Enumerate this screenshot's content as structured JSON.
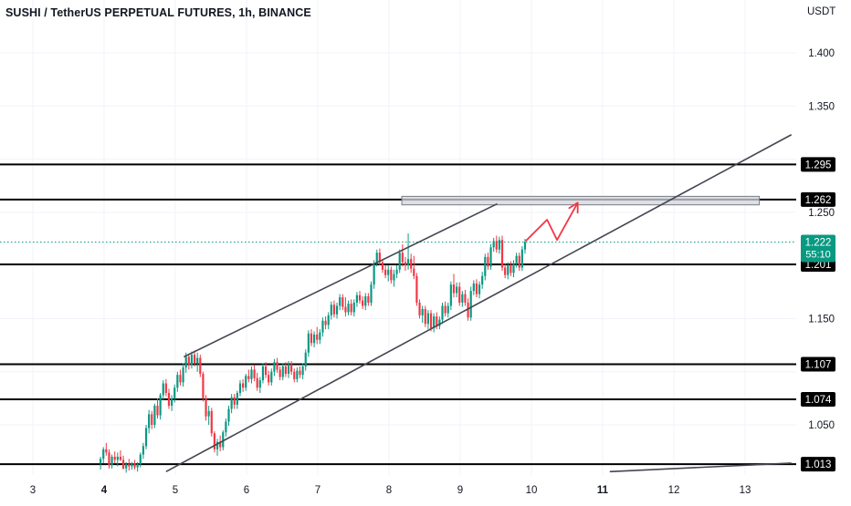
{
  "header": {
    "title": "SUSHI / TetherUS PERPETUAL FUTURES, 1h, BINANCE",
    "currency": "USDT"
  },
  "chart_data": {
    "type": "candlestick",
    "title": "SUSHI / TetherUS PERPETUAL FUTURES, 1h, BINANCE",
    "ylabel": "USDT",
    "xlim": [
      2.7,
      13.6
    ],
    "ylim": [
      1.002,
      1.437
    ],
    "y_ticks": [
      "1.400",
      "1.350",
      "1.250",
      "1.150",
      "1.050"
    ],
    "x_ticks": [
      {
        "x": 3,
        "label": "3",
        "bold": false
      },
      {
        "x": 4,
        "label": "4",
        "bold": true
      },
      {
        "x": 5,
        "label": "5",
        "bold": false
      },
      {
        "x": 6,
        "label": "6",
        "bold": false
      },
      {
        "x": 7,
        "label": "7",
        "bold": false
      },
      {
        "x": 8,
        "label": "8",
        "bold": false
      },
      {
        "x": 9,
        "label": "9",
        "bold": false
      },
      {
        "x": 10,
        "label": "10",
        "bold": false
      },
      {
        "x": 11,
        "label": "11",
        "bold": true
      },
      {
        "x": 12,
        "label": "12",
        "bold": false
      },
      {
        "x": 13,
        "label": "13",
        "bold": false
      }
    ],
    "horizontal_levels": [
      {
        "value": 1.295,
        "label": "1.295"
      },
      {
        "value": 1.262,
        "label": "1.262"
      },
      {
        "value": 1.201,
        "label": "1.201"
      },
      {
        "value": 1.107,
        "label": "1.107"
      },
      {
        "value": 1.074,
        "label": "1.074"
      },
      {
        "value": 1.013,
        "label": "1.013"
      }
    ],
    "current_price": {
      "value": 1.222,
      "label": "1.222",
      "countdown": "55:10",
      "color": "#089981"
    },
    "resistance_zone": {
      "x_start": 8.18,
      "x_end": 13.2,
      "y_low": 1.257,
      "y_high": 1.265,
      "color": "#b2b5be"
    },
    "trendlines": [
      {
        "name": "channel-upper",
        "x1": 5.12,
        "y1": 1.114,
        "x2": 9.52,
        "y2": 1.258
      },
      {
        "name": "channel-lower",
        "x1": 4.87,
        "y1": 1.006,
        "x2": 13.65,
        "y2": 1.323
      },
      {
        "name": "bottom-right-line",
        "x1": 11.1,
        "y1": 1.006,
        "x2": 13.65,
        "y2": 1.014
      }
    ],
    "projection_path": {
      "color": "#f23645",
      "points": [
        [
          9.92,
          1.223
        ],
        [
          10.22,
          1.243
        ],
        [
          10.36,
          1.224
        ],
        [
          10.65,
          1.259
        ]
      ]
    },
    "colors": {
      "up": "#089981",
      "down": "#f23645",
      "level": "#000000",
      "trend": "#434651"
    },
    "candles": [
      [
        3.95,
        1.014,
        1.02,
        1.008,
        1.018
      ],
      [
        3.99,
        1.018,
        1.029,
        1.014,
        1.027
      ],
      [
        4.03,
        1.027,
        1.033,
        1.021,
        1.024
      ],
      [
        4.07,
        1.024,
        1.027,
        1.009,
        1.012
      ],
      [
        4.11,
        1.012,
        1.022,
        1.009,
        1.02
      ],
      [
        4.15,
        1.02,
        1.025,
        1.014,
        1.017
      ],
      [
        4.19,
        1.017,
        1.024,
        1.011,
        1.02
      ],
      [
        4.23,
        1.02,
        1.026,
        1.016,
        1.017
      ],
      [
        4.27,
        1.017,
        1.021,
        1.008,
        1.009
      ],
      [
        4.31,
        1.009,
        1.015,
        1.005,
        1.013
      ],
      [
        4.35,
        1.013,
        1.018,
        1.007,
        1.011
      ],
      [
        4.39,
        1.011,
        1.015,
        1.008,
        1.014
      ],
      [
        4.43,
        1.014,
        1.017,
        1.008,
        1.01
      ],
      [
        4.47,
        1.01,
        1.015,
        1.006,
        1.013
      ],
      [
        4.51,
        1.013,
        1.024,
        1.01,
        1.022
      ],
      [
        4.55,
        1.022,
        1.033,
        1.018,
        1.03
      ],
      [
        4.59,
        1.03,
        1.05,
        1.027,
        1.047
      ],
      [
        4.63,
        1.047,
        1.064,
        1.042,
        1.06
      ],
      [
        4.67,
        1.06,
        1.063,
        1.046,
        1.05
      ],
      [
        4.71,
        1.05,
        1.07,
        1.047,
        1.068
      ],
      [
        4.75,
        1.068,
        1.075,
        1.056,
        1.059
      ],
      [
        4.79,
        1.059,
        1.08,
        1.055,
        1.078
      ],
      [
        4.83,
        1.078,
        1.092,
        1.073,
        1.089
      ],
      [
        4.87,
        1.089,
        1.093,
        1.077,
        1.08
      ],
      [
        4.91,
        1.08,
        1.084,
        1.065,
        1.068
      ],
      [
        4.95,
        1.068,
        1.078,
        1.063,
        1.075
      ],
      [
        4.99,
        1.075,
        1.088,
        1.071,
        1.085
      ],
      [
        5.03,
        1.085,
        1.1,
        1.081,
        1.097
      ],
      [
        5.07,
        1.097,
        1.102,
        1.087,
        1.09
      ],
      [
        5.11,
        1.09,
        1.108,
        1.086,
        1.104
      ],
      [
        5.15,
        1.104,
        1.118,
        1.099,
        1.114
      ],
      [
        5.19,
        1.114,
        1.117,
        1.102,
        1.106
      ],
      [
        5.23,
        1.106,
        1.119,
        1.103,
        1.116
      ],
      [
        5.27,
        1.116,
        1.12,
        1.105,
        1.108
      ],
      [
        5.31,
        1.108,
        1.118,
        1.1,
        1.113
      ],
      [
        5.35,
        1.113,
        1.116,
        1.095,
        1.098
      ],
      [
        5.39,
        1.098,
        1.1,
        1.072,
        1.075
      ],
      [
        5.43,
        1.075,
        1.078,
        1.054,
        1.058
      ],
      [
        5.47,
        1.058,
        1.068,
        1.05,
        1.063
      ],
      [
        5.51,
        1.063,
        1.066,
        1.039,
        1.042
      ],
      [
        5.55,
        1.042,
        1.044,
        1.024,
        1.027
      ],
      [
        5.59,
        1.027,
        1.037,
        1.021,
        1.034
      ],
      [
        5.63,
        1.034,
        1.04,
        1.025,
        1.029
      ],
      [
        5.67,
        1.029,
        1.045,
        1.026,
        1.043
      ],
      [
        5.71,
        1.043,
        1.056,
        1.039,
        1.053
      ],
      [
        5.75,
        1.053,
        1.068,
        1.049,
        1.065
      ],
      [
        5.79,
        1.065,
        1.079,
        1.061,
        1.076
      ],
      [
        5.83,
        1.076,
        1.079,
        1.065,
        1.069
      ],
      [
        5.87,
        1.069,
        1.082,
        1.065,
        1.08
      ],
      [
        5.91,
        1.08,
        1.092,
        1.077,
        1.089
      ],
      [
        5.95,
        1.089,
        1.093,
        1.081,
        1.085
      ],
      [
        5.99,
        1.085,
        1.098,
        1.082,
        1.096
      ],
      [
        6.03,
        1.096,
        1.102,
        1.09,
        1.093
      ],
      [
        6.07,
        1.093,
        1.105,
        1.089,
        1.102
      ],
      [
        6.11,
        1.102,
        1.106,
        1.091,
        1.094
      ],
      [
        6.15,
        1.094,
        1.099,
        1.082,
        1.085
      ],
      [
        6.19,
        1.085,
        1.095,
        1.08,
        1.092
      ],
      [
        6.23,
        1.092,
        1.108,
        1.089,
        1.105
      ],
      [
        6.27,
        1.105,
        1.109,
        1.094,
        1.097
      ],
      [
        6.31,
        1.097,
        1.101,
        1.087,
        1.09
      ],
      [
        6.35,
        1.09,
        1.103,
        1.087,
        1.1
      ],
      [
        6.39,
        1.1,
        1.112,
        1.096,
        1.109
      ],
      [
        6.43,
        1.109,
        1.113,
        1.099,
        1.102
      ],
      [
        6.47,
        1.102,
        1.105,
        1.092,
        1.095
      ],
      [
        6.51,
        1.095,
        1.108,
        1.092,
        1.105
      ],
      [
        6.55,
        1.105,
        1.109,
        1.095,
        1.098
      ],
      [
        6.59,
        1.098,
        1.11,
        1.094,
        1.107
      ],
      [
        6.63,
        1.107,
        1.11,
        1.097,
        1.1
      ],
      [
        6.67,
        1.1,
        1.103,
        1.09,
        1.093
      ],
      [
        6.71,
        1.093,
        1.104,
        1.09,
        1.101
      ],
      [
        6.75,
        1.101,
        1.105,
        1.094,
        1.097
      ],
      [
        6.79,
        1.097,
        1.108,
        1.093,
        1.105
      ],
      [
        6.83,
        1.105,
        1.121,
        1.101,
        1.118
      ],
      [
        6.87,
        1.118,
        1.139,
        1.114,
        1.136
      ],
      [
        6.91,
        1.136,
        1.14,
        1.124,
        1.127
      ],
      [
        6.95,
        1.127,
        1.138,
        1.123,
        1.135
      ],
      [
        6.99,
        1.135,
        1.142,
        1.126,
        1.13
      ],
      [
        7.03,
        1.13,
        1.14,
        1.126,
        1.137
      ],
      [
        7.07,
        1.137,
        1.151,
        1.133,
        1.148
      ],
      [
        7.11,
        1.148,
        1.152,
        1.14,
        1.144
      ],
      [
        7.15,
        1.144,
        1.156,
        1.14,
        1.153
      ],
      [
        7.19,
        1.153,
        1.166,
        1.149,
        1.163
      ],
      [
        7.23,
        1.163,
        1.167,
        1.151,
        1.154
      ],
      [
        7.27,
        1.154,
        1.165,
        1.15,
        1.162
      ],
      [
        7.31,
        1.162,
        1.173,
        1.158,
        1.17
      ],
      [
        7.35,
        1.17,
        1.173,
        1.158,
        1.161
      ],
      [
        7.39,
        1.161,
        1.17,
        1.152,
        1.156
      ],
      [
        7.43,
        1.156,
        1.167,
        1.153,
        1.164
      ],
      [
        7.47,
        1.164,
        1.168,
        1.153,
        1.156
      ],
      [
        7.51,
        1.156,
        1.168,
        1.152,
        1.165
      ],
      [
        7.55,
        1.165,
        1.175,
        1.161,
        1.172
      ],
      [
        7.59,
        1.172,
        1.176,
        1.164,
        1.167
      ],
      [
        7.63,
        1.167,
        1.171,
        1.159,
        1.162
      ],
      [
        7.67,
        1.162,
        1.174,
        1.158,
        1.171
      ],
      [
        7.71,
        1.171,
        1.174,
        1.162,
        1.165
      ],
      [
        7.75,
        1.165,
        1.185,
        1.162,
        1.182
      ],
      [
        7.79,
        1.182,
        1.205,
        1.178,
        1.202
      ],
      [
        7.83,
        1.202,
        1.215,
        1.199,
        1.212
      ],
      [
        7.87,
        1.212,
        1.216,
        1.2,
        1.203
      ],
      [
        7.91,
        1.203,
        1.206,
        1.193,
        1.196
      ],
      [
        7.95,
        1.196,
        1.2,
        1.188,
        1.191
      ],
      [
        7.99,
        1.191,
        1.2,
        1.185,
        1.196
      ],
      [
        8.03,
        1.196,
        1.199,
        1.183,
        1.186
      ],
      [
        8.07,
        1.186,
        1.196,
        1.18,
        1.192
      ],
      [
        8.11,
        1.192,
        1.2,
        1.188,
        1.196
      ],
      [
        8.15,
        1.196,
        1.215,
        1.193,
        1.212
      ],
      [
        8.19,
        1.212,
        1.22,
        1.199,
        1.203
      ],
      [
        8.23,
        1.203,
        1.208,
        1.195,
        1.2
      ],
      [
        8.27,
        1.2,
        1.23,
        1.196,
        1.206
      ],
      [
        8.31,
        1.206,
        1.211,
        1.193,
        1.197
      ],
      [
        8.35,
        1.197,
        1.209,
        1.187,
        1.19
      ],
      [
        8.39,
        1.19,
        1.193,
        1.162,
        1.165
      ],
      [
        8.43,
        1.165,
        1.168,
        1.15,
        1.153
      ],
      [
        8.47,
        1.153,
        1.162,
        1.146,
        1.159
      ],
      [
        8.51,
        1.159,
        1.162,
        1.142,
        1.145
      ],
      [
        8.55,
        1.145,
        1.158,
        1.14,
        1.155
      ],
      [
        8.59,
        1.155,
        1.158,
        1.138,
        1.141
      ],
      [
        8.63,
        1.141,
        1.155,
        1.137,
        1.152
      ],
      [
        8.67,
        1.152,
        1.156,
        1.14,
        1.143
      ],
      [
        8.71,
        1.143,
        1.152,
        1.14,
        1.149
      ],
      [
        8.75,
        1.149,
        1.165,
        1.145,
        1.162
      ],
      [
        8.79,
        1.162,
        1.166,
        1.152,
        1.155
      ],
      [
        8.83,
        1.155,
        1.165,
        1.151,
        1.162
      ],
      [
        8.87,
        1.162,
        1.185,
        1.158,
        1.182
      ],
      [
        8.91,
        1.182,
        1.192,
        1.17,
        1.174
      ],
      [
        8.95,
        1.174,
        1.184,
        1.17,
        1.18
      ],
      [
        8.99,
        1.18,
        1.184,
        1.162,
        1.165
      ],
      [
        9.03,
        1.165,
        1.176,
        1.161,
        1.173
      ],
      [
        9.07,
        1.173,
        1.177,
        1.162,
        1.165
      ],
      [
        9.11,
        1.165,
        1.169,
        1.148,
        1.151
      ],
      [
        9.15,
        1.151,
        1.18,
        1.148,
        1.176
      ],
      [
        9.19,
        1.176,
        1.186,
        1.172,
        1.183
      ],
      [
        9.23,
        1.183,
        1.187,
        1.17,
        1.173
      ],
      [
        9.27,
        1.173,
        1.185,
        1.169,
        1.182
      ],
      [
        9.31,
        1.182,
        1.194,
        1.178,
        1.19
      ],
      [
        9.35,
        1.19,
        1.211,
        1.186,
        1.208
      ],
      [
        9.39,
        1.208,
        1.212,
        1.196,
        1.199
      ],
      [
        9.43,
        1.199,
        1.22,
        1.196,
        1.217
      ],
      [
        9.47,
        1.217,
        1.226,
        1.213,
        1.223
      ],
      [
        9.51,
        1.223,
        1.228,
        1.212,
        1.215
      ],
      [
        9.55,
        1.215,
        1.227,
        1.211,
        1.224
      ],
      [
        9.59,
        1.224,
        1.228,
        1.195,
        1.198
      ],
      [
        9.63,
        1.198,
        1.202,
        1.188,
        1.191
      ],
      [
        9.67,
        1.191,
        1.203,
        1.187,
        1.2
      ],
      [
        9.71,
        1.2,
        1.204,
        1.19,
        1.193
      ],
      [
        9.75,
        1.193,
        1.205,
        1.189,
        1.202
      ],
      [
        9.79,
        1.202,
        1.212,
        1.198,
        1.209
      ],
      [
        9.83,
        1.209,
        1.212,
        1.195,
        1.198
      ],
      [
        9.87,
        1.198,
        1.218,
        1.195,
        1.215
      ],
      [
        9.91,
        1.215,
        1.225,
        1.211,
        1.222
      ]
    ]
  }
}
